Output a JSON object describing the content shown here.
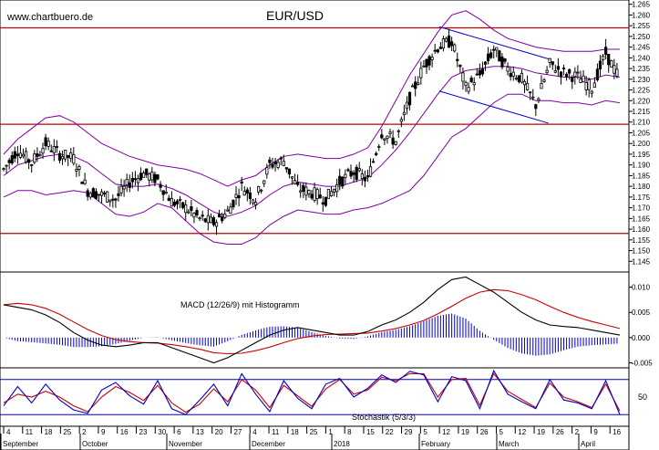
{
  "chart_data": {
    "type": "line",
    "title": "EUR/USD",
    "watermark": "www.chartbuero.de",
    "colors": {
      "price": "#000000",
      "bollinger": "#8000a0",
      "resistance": "#c00000",
      "channel": "#0000cc",
      "macd": "#000000",
      "signal": "#cc0000",
      "histogram": "#0000cc",
      "stoch_k": "#0000cc",
      "stoch_d": "#cc0000"
    },
    "price_panel": {
      "ylim": [
        1.14,
        1.267
      ],
      "y_ticks": [
        "1.145",
        "1.150",
        "1.155",
        "1.160",
        "1.165",
        "1.170",
        "1.175",
        "1.180",
        "1.185",
        "1.190",
        "1.195",
        "1.200",
        "1.205",
        "1.210",
        "1.215",
        "1.220",
        "1.225",
        "1.230",
        "1.235",
        "1.240",
        "1.245",
        "1.250",
        "1.255",
        "1.260",
        "1.265"
      ],
      "horizontal_levels": [
        1.254,
        1.209,
        1.158
      ],
      "channel_upper": {
        "from_week": 31.1,
        "to_week": 38.9,
        "start": 1.2545,
        "end": 1.2395
      },
      "channel_lower": {
        "from_week": 31.1,
        "to_week": 38.9,
        "start": 1.2245,
        "end": 1.2095
      },
      "weekly_close": [
        1.188,
        1.197,
        1.191,
        1.2,
        1.195,
        1.193,
        1.178,
        1.176,
        1.174,
        1.182,
        1.186,
        1.183,
        1.173,
        1.17,
        1.165,
        1.163,
        1.168,
        1.18,
        1.174,
        1.19,
        1.192,
        1.179,
        1.177,
        1.174,
        1.182,
        1.187,
        1.183,
        1.205,
        1.201,
        1.221,
        1.236,
        1.245,
        1.248,
        1.226,
        1.232,
        1.244,
        1.235,
        1.23,
        1.218,
        1.237,
        1.233,
        1.231,
        1.226,
        1.242,
        1.23
      ],
      "bollinger_mid": [
        1.185,
        1.19,
        1.192,
        1.194,
        1.195,
        1.194,
        1.191,
        1.186,
        1.181,
        1.18,
        1.18,
        1.181,
        1.179,
        1.176,
        1.172,
        1.168,
        1.166,
        1.168,
        1.171,
        1.176,
        1.18,
        1.182,
        1.181,
        1.18,
        1.18,
        1.182,
        1.184,
        1.19,
        1.197,
        1.205,
        1.214,
        1.223,
        1.231,
        1.234,
        1.235,
        1.236,
        1.236,
        1.235,
        1.233,
        1.232,
        1.231,
        1.231,
        1.23,
        1.232,
        1.231
      ],
      "bollinger_upper": [
        1.195,
        1.202,
        1.207,
        1.212,
        1.213,
        1.21,
        1.205,
        1.2,
        1.197,
        1.194,
        1.192,
        1.19,
        1.189,
        1.188,
        1.186,
        1.183,
        1.18,
        1.183,
        1.185,
        1.19,
        1.194,
        1.195,
        1.194,
        1.193,
        1.193,
        1.195,
        1.198,
        1.208,
        1.22,
        1.232,
        1.242,
        1.252,
        1.26,
        1.262,
        1.258,
        1.253,
        1.249,
        1.247,
        1.245,
        1.244,
        1.243,
        1.243,
        1.243,
        1.244,
        1.244
      ],
      "bollinger_lower": [
        1.175,
        1.178,
        1.178,
        1.176,
        1.177,
        1.178,
        1.177,
        1.172,
        1.167,
        1.166,
        1.168,
        1.172,
        1.17,
        1.164,
        1.158,
        1.154,
        1.153,
        1.153,
        1.156,
        1.162,
        1.166,
        1.169,
        1.168,
        1.167,
        1.167,
        1.169,
        1.17,
        1.172,
        1.175,
        1.178,
        1.185,
        1.194,
        1.203,
        1.207,
        1.213,
        1.219,
        1.223,
        1.223,
        1.22,
        1.22,
        1.219,
        1.219,
        1.218,
        1.22,
        1.219
      ]
    },
    "macd_panel": {
      "title": "MACD (12/26/9) mit Histogramm",
      "ylim": [
        -0.006,
        0.013
      ],
      "y_ticks": [
        "0.010",
        "0.005",
        "0.000",
        "-0.005"
      ],
      "macd": [
        0.0065,
        0.006,
        0.0055,
        0.0045,
        0.003,
        0.001,
        -0.0005,
        -0.0015,
        -0.0018,
        -0.0015,
        -0.001,
        -0.001,
        -0.002,
        -0.003,
        -0.004,
        -0.005,
        -0.004,
        -0.0025,
        -0.001,
        0.0005,
        0.0015,
        0.002,
        0.0015,
        0.001,
        0.0005,
        0.0005,
        0.0012,
        0.0025,
        0.0035,
        0.005,
        0.007,
        0.0095,
        0.0115,
        0.012,
        0.0105,
        0.009,
        0.007,
        0.005,
        0.0035,
        0.0025,
        0.0022,
        0.002,
        0.0015,
        0.001,
        0.0005
      ],
      "signal": [
        0.0065,
        0.0068,
        0.0065,
        0.0058,
        0.0046,
        0.0031,
        0.0016,
        0.0004,
        -0.0004,
        -0.0008,
        -0.001,
        -0.0011,
        -0.0014,
        -0.0018,
        -0.0023,
        -0.003,
        -0.0032,
        -0.0031,
        -0.0026,
        -0.0019,
        -0.001,
        -0.0002,
        0.0003,
        0.0006,
        0.0007,
        0.0008,
        0.0009,
        0.0013,
        0.0018,
        0.0025,
        0.0034,
        0.0047,
        0.0062,
        0.0078,
        0.009,
        0.0095,
        0.0093,
        0.0085,
        0.0075,
        0.0062,
        0.005,
        0.004,
        0.0032,
        0.0025,
        0.0018
      ]
    },
    "stoch_panel": {
      "title": "Stochastik (5/3/3)",
      "ylim": [
        0,
        100
      ],
      "y_ticks": [
        "50"
      ],
      "levels": [
        80,
        20
      ],
      "k": [
        35,
        68,
        40,
        72,
        45,
        28,
        22,
        62,
        75,
        52,
        38,
        78,
        30,
        20,
        45,
        72,
        35,
        90,
        55,
        25,
        78,
        48,
        30,
        72,
        82,
        50,
        65,
        88,
        75,
        94,
        88,
        42,
        85,
        78,
        30,
        95,
        55,
        42,
        30,
        80,
        45,
        40,
        30,
        78,
        20
      ],
      "d": [
        40,
        55,
        50,
        60,
        50,
        35,
        25,
        50,
        68,
        58,
        44,
        70,
        40,
        24,
        38,
        64,
        42,
        80,
        62,
        32,
        70,
        52,
        34,
        64,
        80,
        55,
        62,
        84,
        78,
        90,
        90,
        50,
        80,
        82,
        36,
        90,
        60,
        46,
        32,
        74,
        50,
        42,
        32,
        72,
        26
      ]
    },
    "x_axis": {
      "ticks": [
        "4",
        "11",
        "18",
        "25",
        "2",
        "9",
        "16",
        "23",
        "30",
        "6",
        "13",
        "20",
        "27",
        "4",
        "11",
        "18",
        "25",
        "1",
        "8",
        "15",
        "22",
        "29",
        "5",
        "12",
        "19",
        "26",
        "5",
        "12",
        "19",
        "26",
        "2",
        "9",
        "16"
      ],
      "months": [
        "September",
        "October",
        "November",
        "December",
        "2018",
        "February",
        "March",
        "April"
      ]
    }
  }
}
